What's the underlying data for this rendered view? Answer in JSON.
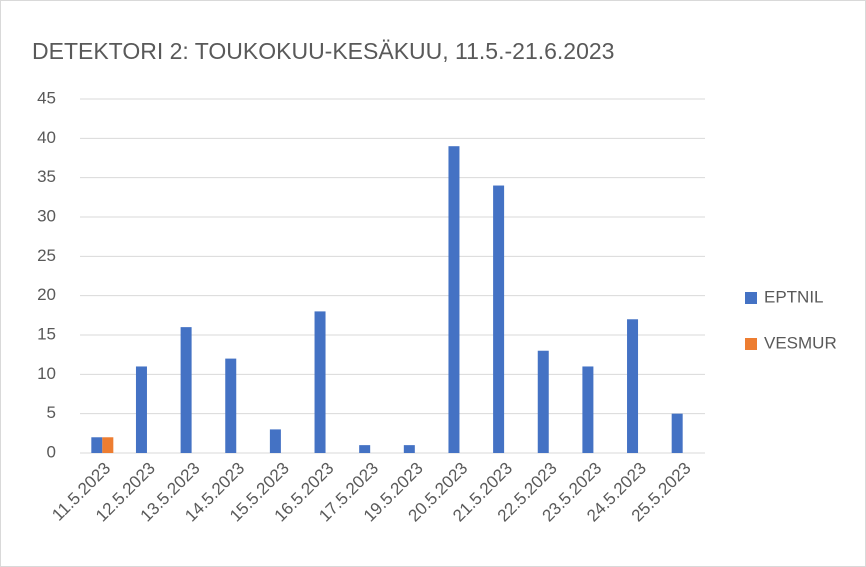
{
  "chart_data": {
    "type": "bar",
    "title": "DETEKTORI 2: TOUKOKUU-KESÄKUU, 11.5.-21.6.2023",
    "categories": [
      "11.5.2023",
      "12.5.2023",
      "13.5.2023",
      "14.5.2023",
      "15.5.2023",
      "16.5.2023",
      "17.5.2023",
      "19.5.2023",
      "20.5.2023",
      "21.5.2023",
      "22.5.2023",
      "23.5.2023",
      "24.5.2023",
      "25.5.2023"
    ],
    "series": [
      {
        "name": "EPTNIL",
        "color": "#4472c4",
        "values": [
          2,
          11,
          16,
          12,
          3,
          18,
          1,
          1,
          39,
          34,
          13,
          11,
          17,
          5
        ]
      },
      {
        "name": "VESMUR",
        "color": "#ed7d31",
        "values": [
          2,
          null,
          null,
          null,
          null,
          null,
          null,
          null,
          null,
          null,
          null,
          null,
          null,
          null
        ]
      }
    ],
    "ylim": [
      0,
      45
    ],
    "yticks": [
      0,
      5,
      10,
      15,
      20,
      25,
      30,
      35,
      40,
      45
    ],
    "grid": true,
    "legend": "right"
  }
}
